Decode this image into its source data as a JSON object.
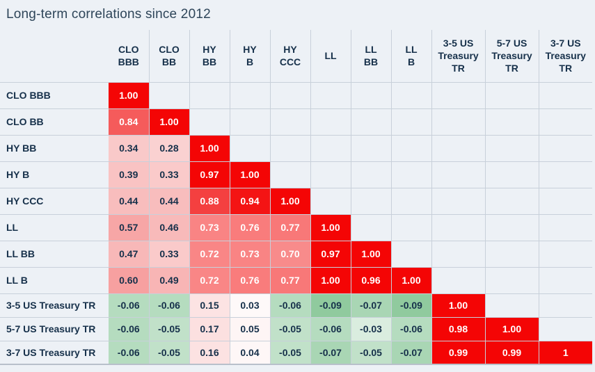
{
  "title": "Long-term correlations since 2012",
  "colors": {
    "background": "#edf1f6",
    "gridline": "#d2d8e0",
    "bottom_border": "#b8c0ca",
    "text_dark": "#16304a",
    "text_light": "#ffffff",
    "red_max": "#f40505",
    "green_max": "#6bb87e"
  },
  "chart_data": {
    "type": "heatmap",
    "title": "Long-term correlations since 2012",
    "rows": [
      "CLO BBB",
      "CLO BB",
      "HY BB",
      "HY B",
      "HY CCC",
      "LL",
      "LL BB",
      "LL B",
      "3-5 US Treasury TR",
      "5-7 US Treasury TR",
      "3-7 US Treasury TR"
    ],
    "columns": [
      "CLO BBB",
      "CLO BB",
      "HY BB",
      "HY B",
      "HY CCC",
      "LL",
      "LL BB",
      "LL B",
      "3-5 US Treasury TR",
      "5-7 US Treasury TR",
      "3-7 US Treasury TR"
    ],
    "column_header_lines": [
      [
        "CLO",
        "BBB"
      ],
      [
        "CLO",
        "BB"
      ],
      [
        "HY",
        "BB"
      ],
      [
        "HY",
        "B"
      ],
      [
        "HY",
        "CCC"
      ],
      [
        "LL"
      ],
      [
        "LL",
        "BB"
      ],
      [
        "LL",
        "B"
      ],
      [
        "3-5 US",
        "Treasury",
        "TR"
      ],
      [
        "5-7 US",
        "Treasury",
        "TR"
      ],
      [
        "3-7 US",
        "Treasury",
        "TR"
      ]
    ],
    "values": [
      [
        "1.00"
      ],
      [
        "0.84",
        "1.00"
      ],
      [
        "0.34",
        "0.28",
        "1.00"
      ],
      [
        "0.39",
        "0.33",
        "0.97",
        "1.00"
      ],
      [
        "0.44",
        "0.44",
        "0.88",
        "0.94",
        "1.00"
      ],
      [
        "0.57",
        "0.46",
        "0.73",
        "0.76",
        "0.77",
        "1.00"
      ],
      [
        "0.47",
        "0.33",
        "0.72",
        "0.73",
        "0.70",
        "0.97",
        "1.00"
      ],
      [
        "0.60",
        "0.49",
        "0.72",
        "0.76",
        "0.77",
        "1.00",
        "0.96",
        "1.00"
      ],
      [
        "-0.06",
        "-0.06",
        "0.15",
        "0.03",
        "-0.06",
        "-0.09",
        "-0.07",
        "-0.09",
        "1.00"
      ],
      [
        "-0.06",
        "-0.05",
        "0.17",
        "0.05",
        "-0.05",
        "-0.06",
        "-0.03",
        "-0.06",
        "0.98",
        "1.00"
      ],
      [
        "-0.06",
        "-0.05",
        "0.16",
        "0.04",
        "-0.05",
        "-0.07",
        "-0.05",
        "-0.07",
        "0.99",
        "0.99",
        "1"
      ]
    ],
    "white_text_threshold": 0.7,
    "negative_scale_min": -0.12,
    "grid": true,
    "legend": false
  }
}
